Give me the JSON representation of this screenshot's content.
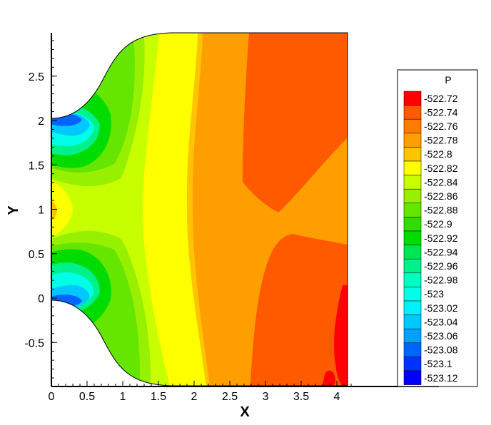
{
  "chart_data": {
    "type": "contour",
    "xlabel": "X",
    "ylabel": "Y",
    "xlim": [
      0,
      4.3
    ],
    "ylim": [
      -0.95,
      2.95
    ],
    "x_ticks": [
      "0",
      "0.5",
      "1",
      "1.5",
      "2",
      "2.5",
      "3",
      "3.5",
      "4"
    ],
    "y_ticks": [
      "-0.5",
      "0",
      "0.5",
      "1",
      "1.5",
      "2",
      "2.5"
    ],
    "legend": {
      "title": "P",
      "placement": "right",
      "levels": [
        {
          "label": "-522.72",
          "color": "#ff0000"
        },
        {
          "label": "-522.74",
          "color": "#ff5a00"
        },
        {
          "label": "-522.76",
          "color": "#ff7a00"
        },
        {
          "label": "-522.78",
          "color": "#ff9e00"
        },
        {
          "label": "-522.8",
          "color": "#ffc400"
        },
        {
          "label": "-522.82",
          "color": "#ffff00"
        },
        {
          "label": "-522.84",
          "color": "#c8ff00"
        },
        {
          "label": "-522.86",
          "color": "#96f000"
        },
        {
          "label": "-522.88",
          "color": "#64e600"
        },
        {
          "label": "-522.9",
          "color": "#32dc00"
        },
        {
          "label": "-522.92",
          "color": "#00dc00"
        },
        {
          "label": "-522.94",
          "color": "#00e650"
        },
        {
          "label": "-522.96",
          "color": "#00f08c"
        },
        {
          "label": "-522.98",
          "color": "#00ffc0"
        },
        {
          "label": "-523",
          "color": "#00ffe6"
        },
        {
          "label": "-523.02",
          "color": "#00f0ff"
        },
        {
          "label": "-523.04",
          "color": "#00c8ff"
        },
        {
          "label": "-523.06",
          "color": "#00a0ff"
        },
        {
          "label": "-523.08",
          "color": "#0064ff"
        },
        {
          "label": "-523.1",
          "color": "#0032ff"
        },
        {
          "label": "-523.12",
          "color": "#0000ff"
        }
      ]
    }
  }
}
